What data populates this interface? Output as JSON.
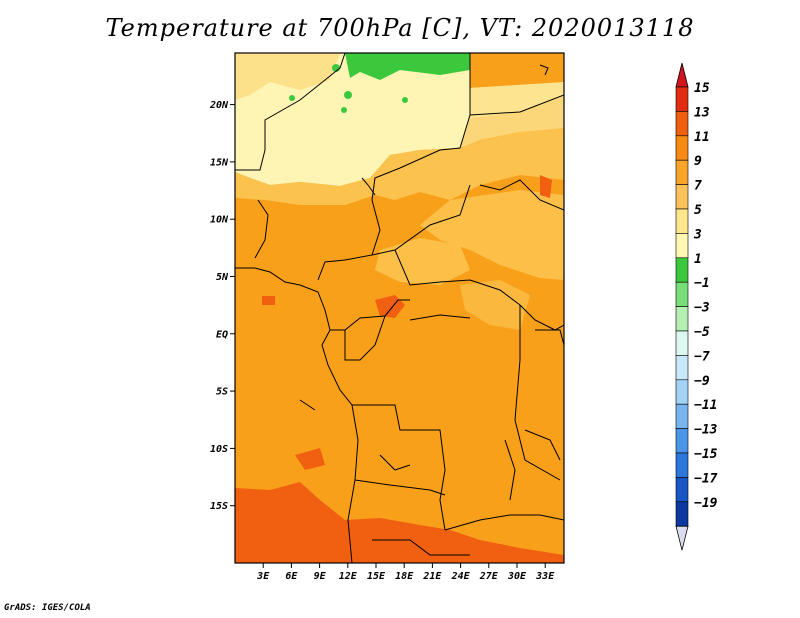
{
  "title": "Temperature at 700hPa [C], VT: 2020013118",
  "credit": "GrADS: IGES/COLA",
  "map": {
    "lat_labels": [
      "20N",
      "15N",
      "10N",
      "5N",
      "EQ",
      "5S",
      "10S",
      "15S"
    ],
    "lat_values": [
      20,
      15,
      10,
      5,
      0,
      -5,
      -10,
      -15
    ],
    "lon_labels": [
      "3E",
      "6E",
      "9E",
      "12E",
      "15E",
      "18E",
      "21E",
      "24E",
      "27E",
      "30E",
      "33E"
    ],
    "lon_values": [
      3,
      6,
      9,
      12,
      15,
      18,
      21,
      24,
      27,
      30,
      33
    ],
    "lon_range": [
      0,
      35
    ],
    "lat_range": [
      -20,
      24.5
    ]
  },
  "colorbar": {
    "labels": [
      "15",
      "13",
      "11",
      "9",
      "7",
      "5",
      "3",
      "1",
      "−1",
      "−3",
      "−5",
      "−7",
      "−9",
      "−11",
      "−13",
      "−15",
      "−17",
      "−19"
    ],
    "colors": [
      "#a50c0c",
      "#e02d12",
      "#f06010",
      "#f78a12",
      "#faa42a",
      "#fcc25a",
      "#fde68c",
      "#fef8b2",
      "#3cc83c",
      "#78de78",
      "#b4f0b4",
      "#dcf8f0",
      "#c8e8fa",
      "#a4d2f6",
      "#78b4f0",
      "#4c96ea",
      "#2c76dc",
      "#1856c4",
      "#0c38a0",
      "#0a1a78"
    ],
    "top_arrow_color": "#d2141e",
    "bottom_arrow_color": "#dcdcf0"
  }
}
